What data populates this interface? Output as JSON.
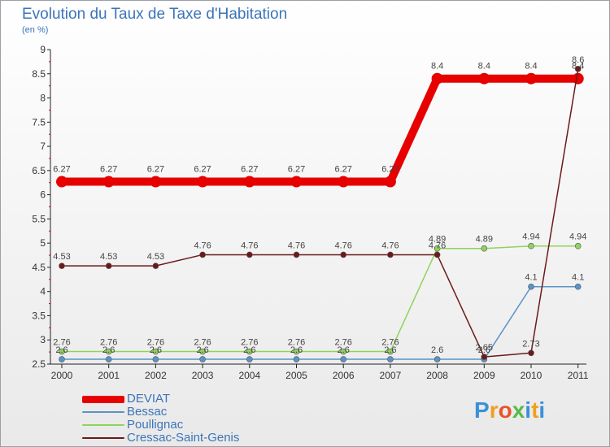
{
  "title": "Evolution du Taux de Taxe d'Habitation",
  "subtitle": "(en %)",
  "logo": "Proxiti",
  "chart_data": {
    "type": "line",
    "x": [
      "2000",
      "2001",
      "2002",
      "2003",
      "2004",
      "2005",
      "2006",
      "2007",
      "2008",
      "2009",
      "2010",
      "2011"
    ],
    "ylim": [
      2.5,
      9
    ],
    "yticks": [
      "2.5",
      "3",
      "3.5",
      "4",
      "4.5",
      "5",
      "5.5",
      "6",
      "6.5",
      "7",
      "7.5",
      "8",
      "8.5",
      "9"
    ],
    "grid": false,
    "legend_position": "bottom-left",
    "series": [
      {
        "name": "DEVIAT",
        "color": "#e60000",
        "values": [
          6.27,
          6.27,
          6.27,
          6.27,
          6.27,
          6.27,
          6.27,
          6.27,
          8.4,
          8.4,
          8.4,
          8.4
        ],
        "labels": [
          "6.27",
          "6.27",
          "6.27",
          "6.27",
          "6.27",
          "6.27",
          "6.27",
          "6.27",
          "8.4",
          "8.4",
          "8.4",
          "8.4"
        ]
      },
      {
        "name": "Bessac",
        "color": "#5b93c6",
        "values": [
          2.6,
          2.6,
          2.6,
          2.6,
          2.6,
          2.6,
          2.6,
          2.6,
          2.6,
          2.6,
          4.1,
          4.1
        ],
        "labels": [
          "2.6",
          "2.6",
          "2.6",
          "2.6",
          "2.6",
          "2.6",
          "2.6",
          "2.6",
          "2.6",
          "2.6",
          "4.1",
          "4.1"
        ]
      },
      {
        "name": "Poullignac",
        "color": "#8fd35c",
        "values": [
          2.76,
          2.76,
          2.76,
          2.76,
          2.76,
          2.76,
          2.76,
          2.76,
          4.89,
          4.89,
          4.94,
          4.94
        ],
        "labels": [
          "2.76",
          "2.76",
          "2.76",
          "2.76",
          "2.76",
          "2.76",
          "2.76",
          "2.76",
          "4.89",
          "4.89",
          "4.94",
          "4.94"
        ]
      },
      {
        "name": "Cressac-Saint-Genis",
        "color": "#6b1a1a",
        "values": [
          4.53,
          4.53,
          4.53,
          4.76,
          4.76,
          4.76,
          4.76,
          4.76,
          4.76,
          2.65,
          2.73,
          8.6
        ],
        "labels": [
          "4.53",
          "4.53",
          "4.53",
          "4.76",
          "4.76",
          "4.76",
          "4.76",
          "4.76",
          "4.76",
          "2.65",
          "2.73",
          "8.6"
        ]
      }
    ]
  }
}
